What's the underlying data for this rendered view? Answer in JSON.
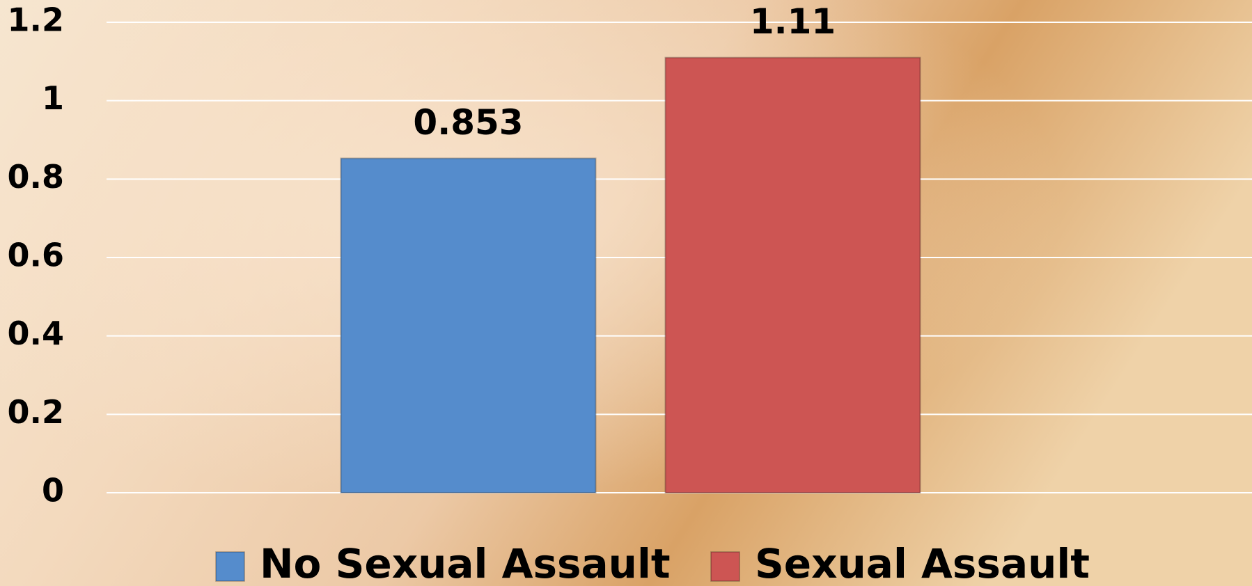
{
  "chart_data": {
    "type": "bar",
    "categories": [
      null
    ],
    "series": [
      {
        "name": "No Sexual Assault",
        "color": "#558ccc",
        "values": [
          0.853
        ]
      },
      {
        "name": "Sexual Assault",
        "color": "#cd5553",
        "values": [
          1.11
        ]
      }
    ],
    "ylim": [
      0,
      1.2
    ],
    "yticks": [
      0,
      0.2,
      0.4,
      0.6,
      0.8,
      1,
      1.2
    ],
    "grid": true,
    "legend": "bottom"
  }
}
